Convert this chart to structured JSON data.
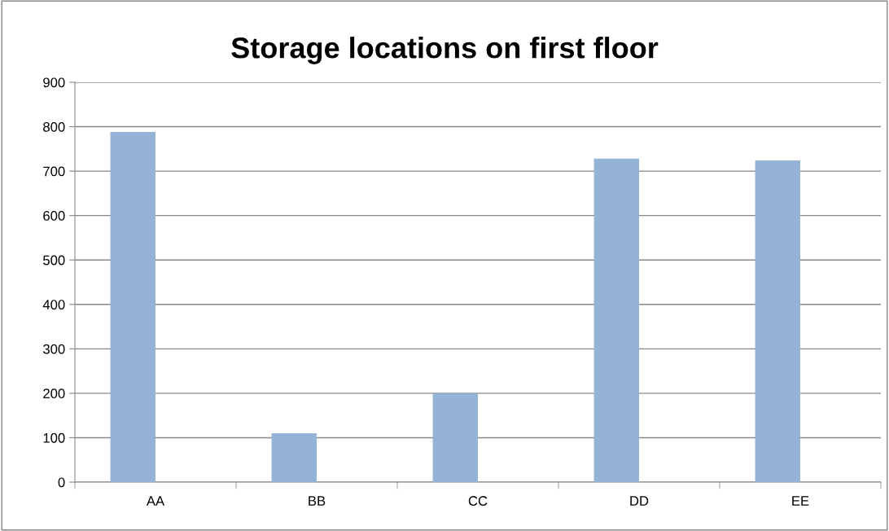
{
  "chart_data": {
    "type": "bar",
    "title": "Storage locations on first floor",
    "categories": [
      "AA",
      "BB",
      "CC",
      "DD",
      "EE"
    ],
    "values": [
      788,
      110,
      200,
      728,
      724
    ],
    "color": "#95b3d7",
    "ylim": [
      0,
      900
    ],
    "yticks": [
      0,
      100,
      200,
      300,
      400,
      500,
      600,
      700,
      800,
      900
    ],
    "grid": "y",
    "legend": false
  }
}
